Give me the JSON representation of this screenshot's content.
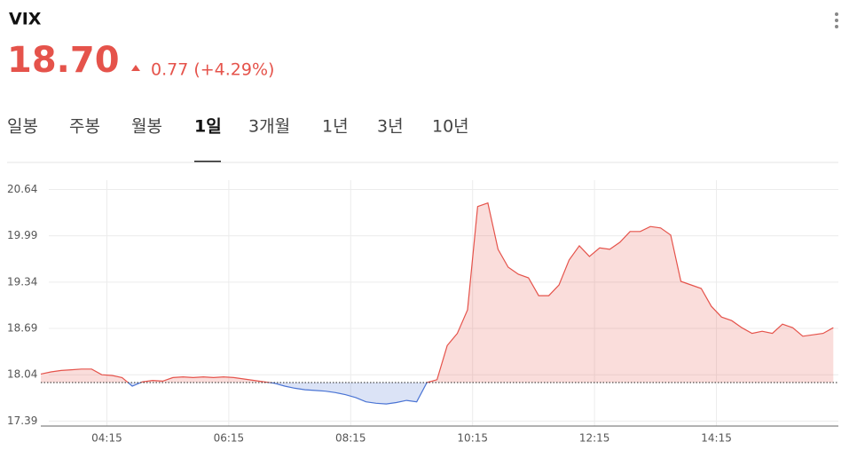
{
  "header": {
    "title": "VIX",
    "price": "18.70",
    "change": "0.77 (+4.29%)"
  },
  "tabs": [
    "일봉",
    "주봉",
    "월봉",
    "1일",
    "3개월",
    "1년",
    "3년",
    "10년"
  ],
  "active_tab": 3,
  "chart_data": {
    "type": "area",
    "x": [
      "03:10",
      "03:20",
      "03:30",
      "03:40",
      "03:50",
      "04:00",
      "04:10",
      "04:20",
      "04:30",
      "04:40",
      "04:50",
      "05:00",
      "05:10",
      "05:20",
      "05:30",
      "05:40",
      "05:50",
      "06:00",
      "06:10",
      "06:20",
      "06:30",
      "06:40",
      "06:50",
      "07:00",
      "07:10",
      "07:20",
      "07:30",
      "07:40",
      "07:50",
      "08:00",
      "08:10",
      "08:20",
      "08:30",
      "08:40",
      "08:50",
      "09:00",
      "09:10",
      "09:20",
      "09:30",
      "09:40",
      "09:50",
      "10:00",
      "10:10",
      "10:20",
      "10:30",
      "10:40",
      "10:50",
      "11:00",
      "11:10",
      "11:20",
      "11:30",
      "11:40",
      "11:50",
      "12:00",
      "12:10",
      "12:20",
      "12:30",
      "12:40",
      "12:50",
      "13:00",
      "13:10",
      "13:20",
      "13:30",
      "13:40",
      "13:50",
      "14:00",
      "14:10",
      "14:20",
      "14:30",
      "14:40",
      "14:50",
      "15:00",
      "15:10",
      "15:20",
      "15:30",
      "15:40",
      "15:50",
      "16:00",
      "16:10"
    ],
    "values": [
      18.05,
      18.08,
      18.1,
      18.11,
      18.12,
      18.12,
      18.04,
      18.03,
      18.0,
      17.88,
      17.94,
      17.96,
      17.95,
      18.0,
      18.01,
      18.0,
      18.01,
      18.0,
      18.01,
      18.0,
      17.98,
      17.96,
      17.94,
      17.92,
      17.88,
      17.85,
      17.83,
      17.82,
      17.81,
      17.79,
      17.76,
      17.72,
      17.66,
      17.64,
      17.63,
      17.65,
      17.68,
      17.66,
      17.93,
      17.97,
      18.45,
      18.62,
      18.95,
      20.4,
      20.45,
      19.8,
      19.55,
      19.45,
      19.4,
      19.15,
      19.15,
      19.3,
      19.65,
      19.85,
      19.7,
      19.82,
      19.8,
      19.9,
      20.05,
      20.05,
      20.12,
      20.1,
      20.0,
      19.35,
      19.3,
      19.25,
      19.0,
      18.85,
      18.8,
      18.7,
      18.62,
      18.65,
      18.62,
      18.75,
      18.7,
      18.58,
      18.6,
      18.62,
      18.7
    ],
    "baseline": 17.93,
    "color": "#e5534b",
    "negative_color": "#4a74d4",
    "xlim": [
      "03:10",
      "16:15"
    ],
    "xticks": [
      "04:15",
      "06:15",
      "08:15",
      "10:15",
      "12:15",
      "14:15"
    ],
    "ylim": [
      17.32,
      20.77
    ],
    "yticks": [
      17.39,
      18.04,
      18.69,
      19.34,
      19.99,
      20.64
    ],
    "grid": true
  }
}
